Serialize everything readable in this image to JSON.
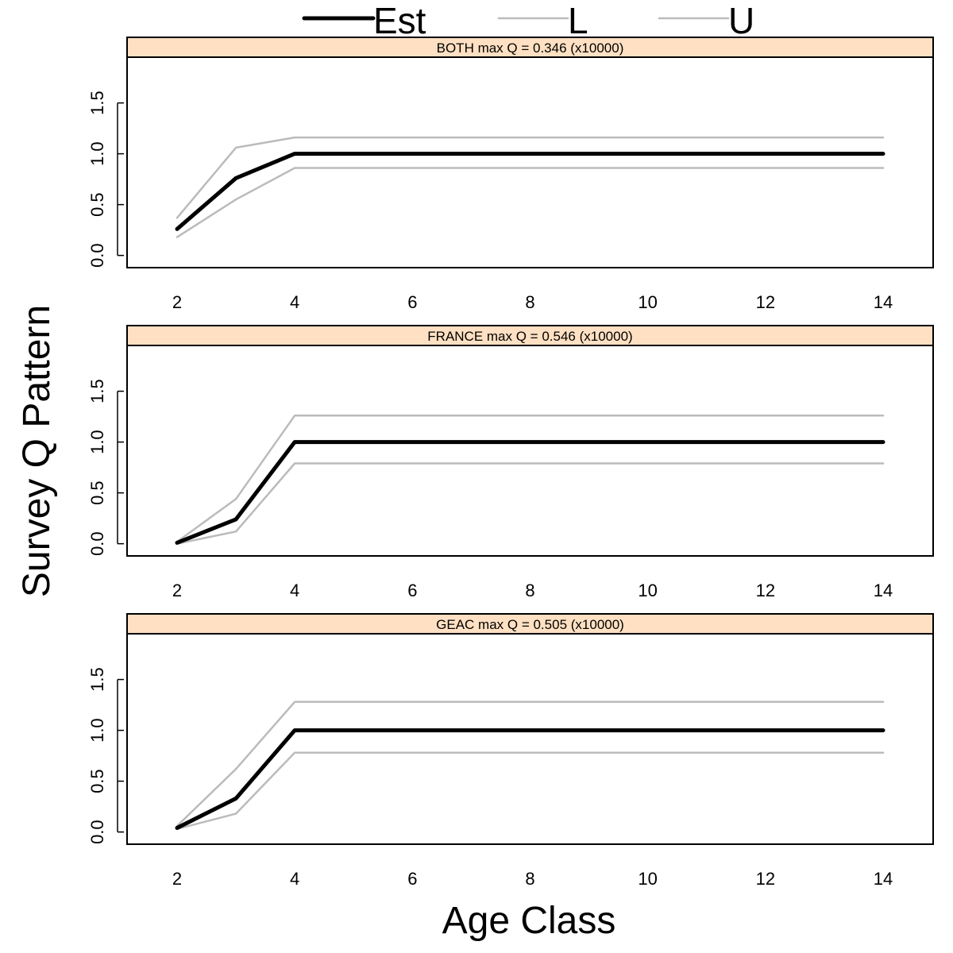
{
  "legend": {
    "items": [
      {
        "label": "Est",
        "color": "#000000",
        "width": 5
      },
      {
        "label": "L",
        "color": "#bbbbbb",
        "width": 2.5
      },
      {
        "label": "U",
        "color": "#bbbbbb",
        "width": 2.5
      }
    ],
    "placement": "top-center"
  },
  "ylabel": "Survey Q Pattern",
  "xlabel": "Age Class",
  "strip_color": "#ffe0c2",
  "chart_data": [
    {
      "type": "line",
      "title": "BOTH max Q = 0.346 (x10000)",
      "x": [
        2,
        3,
        4,
        5,
        6,
        7,
        8,
        9,
        10,
        11,
        12,
        13,
        14
      ],
      "series": [
        {
          "name": "Est",
          "color": "#000000",
          "values": [
            0.26,
            0.76,
            1.0,
            1.0,
            1.0,
            1.0,
            1.0,
            1.0,
            1.0,
            1.0,
            1.0,
            1.0,
            1.0
          ]
        },
        {
          "name": "L",
          "color": "#bbbbbb",
          "values": [
            0.18,
            0.55,
            0.86,
            0.86,
            0.86,
            0.86,
            0.86,
            0.86,
            0.86,
            0.86,
            0.86,
            0.86,
            0.86
          ]
        },
        {
          "name": "U",
          "color": "#bbbbbb",
          "values": [
            0.37,
            1.06,
            1.16,
            1.16,
            1.16,
            1.16,
            1.16,
            1.16,
            1.16,
            1.16,
            1.16,
            1.16,
            1.16
          ]
        }
      ],
      "xticks": [
        2,
        4,
        6,
        8,
        10,
        12,
        14
      ],
      "yticks": [
        "0.0",
        "0.5",
        "1.0",
        "1.5"
      ],
      "xlim": [
        1.15,
        14.85
      ],
      "ylim": [
        -0.12,
        1.95
      ]
    },
    {
      "type": "line",
      "title": "FRANCE max Q = 0.546 (x10000)",
      "x": [
        2,
        3,
        4,
        5,
        6,
        7,
        8,
        9,
        10,
        11,
        12,
        13,
        14
      ],
      "series": [
        {
          "name": "Est",
          "color": "#000000",
          "values": [
            0.01,
            0.24,
            1.0,
            1.0,
            1.0,
            1.0,
            1.0,
            1.0,
            1.0,
            1.0,
            1.0,
            1.0,
            1.0
          ]
        },
        {
          "name": "L",
          "color": "#bbbbbb",
          "values": [
            0.0,
            0.12,
            0.79,
            0.79,
            0.79,
            0.79,
            0.79,
            0.79,
            0.79,
            0.79,
            0.79,
            0.79,
            0.79
          ]
        },
        {
          "name": "U",
          "color": "#bbbbbb",
          "values": [
            0.02,
            0.44,
            1.26,
            1.26,
            1.26,
            1.26,
            1.26,
            1.26,
            1.26,
            1.26,
            1.26,
            1.26,
            1.26
          ]
        }
      ],
      "xticks": [
        2,
        4,
        6,
        8,
        10,
        12,
        14
      ],
      "yticks": [
        "0.0",
        "0.5",
        "1.0",
        "1.5"
      ],
      "xlim": [
        1.15,
        14.85
      ],
      "ylim": [
        -0.12,
        1.95
      ]
    },
    {
      "type": "line",
      "title": "GEAC max Q = 0.505 (x10000)",
      "x": [
        2,
        3,
        4,
        5,
        6,
        7,
        8,
        9,
        10,
        11,
        12,
        13,
        14
      ],
      "series": [
        {
          "name": "Est",
          "color": "#000000",
          "values": [
            0.04,
            0.33,
            1.0,
            1.0,
            1.0,
            1.0,
            1.0,
            1.0,
            1.0,
            1.0,
            1.0,
            1.0,
            1.0
          ]
        },
        {
          "name": "L",
          "color": "#bbbbbb",
          "values": [
            0.03,
            0.18,
            0.78,
            0.78,
            0.78,
            0.78,
            0.78,
            0.78,
            0.78,
            0.78,
            0.78,
            0.78,
            0.78
          ]
        },
        {
          "name": "U",
          "color": "#bbbbbb",
          "values": [
            0.06,
            0.62,
            1.28,
            1.28,
            1.28,
            1.28,
            1.28,
            1.28,
            1.28,
            1.28,
            1.28,
            1.28,
            1.28
          ]
        }
      ],
      "xticks": [
        2,
        4,
        6,
        8,
        10,
        12,
        14
      ],
      "yticks": [
        "0.0",
        "0.5",
        "1.0",
        "1.5"
      ],
      "xlim": [
        1.15,
        14.85
      ],
      "ylim": [
        -0.12,
        1.95
      ]
    }
  ]
}
